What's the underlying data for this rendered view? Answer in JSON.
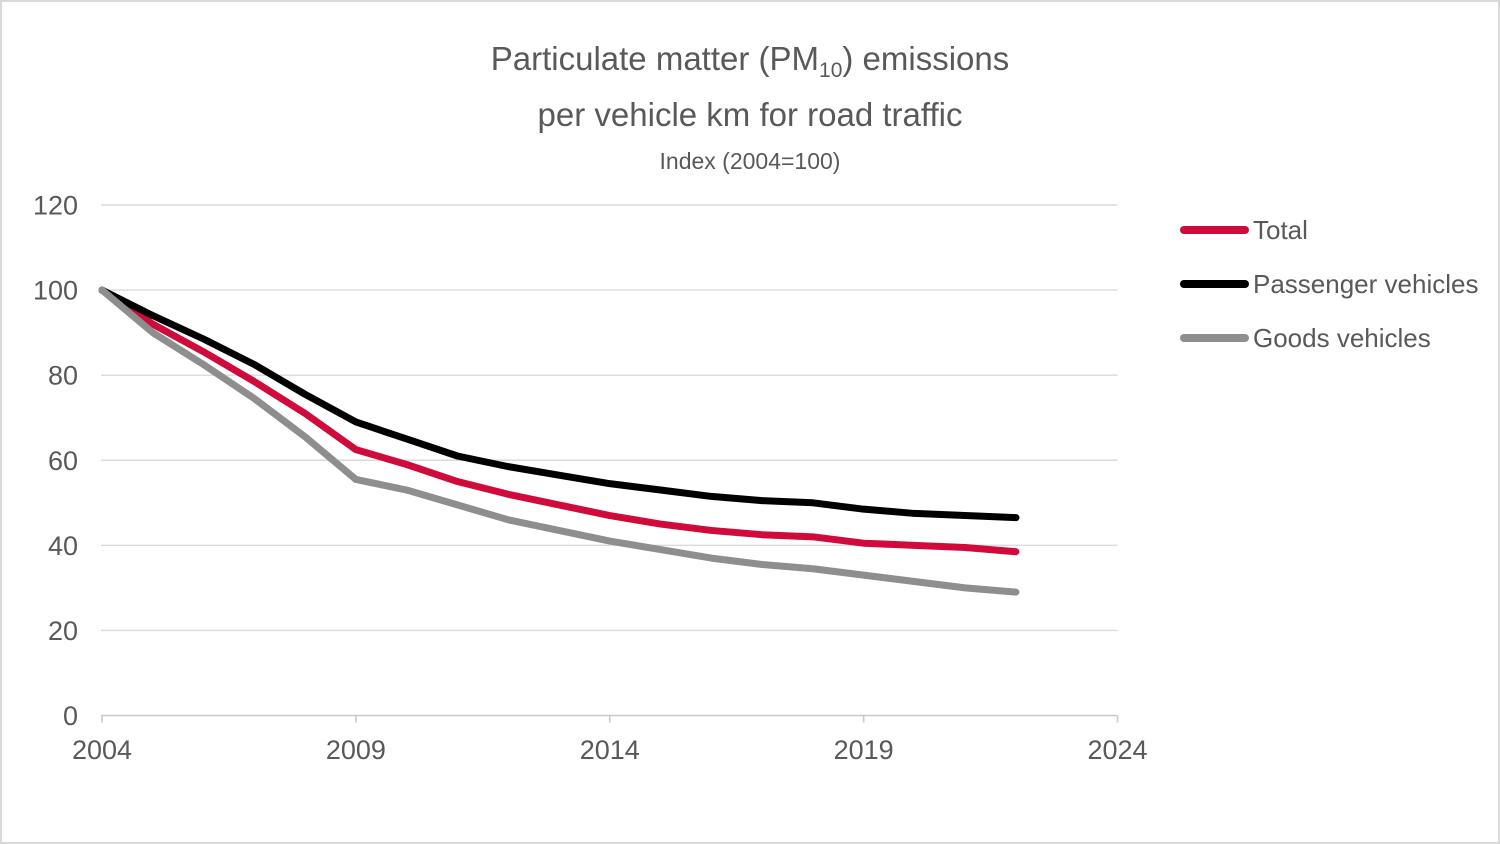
{
  "chart_data": {
    "type": "line",
    "title_lines": {
      "line1_prefix": "Particulate matter (PM",
      "line1_sub": "10",
      "line1_suffix": ") emissions",
      "line2": "per vehicle km for road traffic"
    },
    "subtitle": "Index (2004=100)",
    "x": [
      2004,
      2005,
      2006,
      2007,
      2008,
      2009,
      2010,
      2011,
      2012,
      2013,
      2014,
      2015,
      2016,
      2017,
      2018,
      2019,
      2020,
      2021,
      2022
    ],
    "series": [
      {
        "name": "Total",
        "color": "#d10a3c",
        "values": [
          100,
          92,
          85.5,
          78.5,
          71,
          62.5,
          59,
          55,
          52,
          49.5,
          47,
          45,
          43.5,
          42.5,
          42,
          40.5,
          40,
          39.5,
          38.5
        ]
      },
      {
        "name": "Passenger vehicles",
        "color": "#000000",
        "values": [
          100,
          94,
          88.5,
          82.5,
          75.5,
          69,
          65,
          61,
          58.5,
          56.5,
          54.5,
          53,
          51.5,
          50.5,
          50,
          48.5,
          47.5,
          47,
          46.5
        ]
      },
      {
        "name": "Goods vehicles",
        "color": "#8e8e8e",
        "values": [
          100,
          90,
          82.5,
          74.5,
          65.5,
          55.5,
          53,
          49.5,
          46,
          43.5,
          41,
          39,
          37,
          35.5,
          34.5,
          33,
          31.5,
          30,
          29
        ]
      }
    ],
    "x_ticks": [
      2004,
      2009,
      2014,
      2019,
      2024
    ],
    "y_ticks": [
      0,
      20,
      40,
      60,
      80,
      100,
      120
    ],
    "xlim": [
      2004,
      2024
    ],
    "ylim": [
      0,
      120
    ],
    "grid": "horizontal",
    "legend_position": "right",
    "text_color": "#595959",
    "grid_color": "#dadada",
    "axis_color": "#c9c9c9"
  }
}
